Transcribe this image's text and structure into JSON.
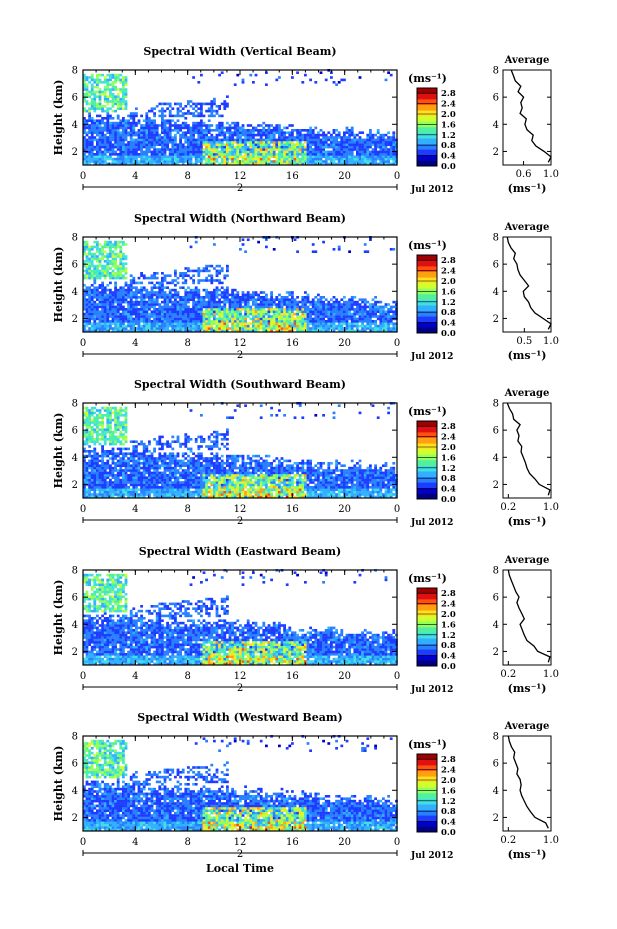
{
  "figure": {
    "date_label": "Jul 2012",
    "day_label": "2",
    "x_axis_label": "Local Time",
    "y_axis_label": "Height (km)",
    "colorbar_unit": "(ms⁻¹)",
    "average_title": "Average",
    "average_unit": "(ms⁻¹)",
    "colorbar_ticks": [
      "0.0",
      "0.4",
      "0.8",
      "1.2",
      "1.6",
      "2.0",
      "2.4",
      "2.8"
    ],
    "colorbar_range": [
      0.0,
      3.0
    ],
    "x_ticks": [
      "0",
      "4",
      "8",
      "12",
      "16",
      "20",
      "0"
    ],
    "y_ticks": [
      "2",
      "4",
      "6",
      "8"
    ],
    "colormap": [
      "#000080",
      "#0000c8",
      "#1e3cff",
      "#2880ff",
      "#30b0ff",
      "#40e0e0",
      "#50f0a0",
      "#90ff60",
      "#d0ff30",
      "#ffe020",
      "#ffa010",
      "#ff5010",
      "#e01010",
      "#a00000"
    ]
  },
  "chart_data": [
    {
      "type": "heatmap",
      "title": "Spectral Width (Vertical Beam)",
      "xlabel": "",
      "ylabel": "Height (km)",
      "xlim": [
        0,
        24
      ],
      "ylim": [
        1,
        8
      ],
      "average": {
        "xlim": [
          0.3,
          1.0
        ],
        "x_ticks": [
          "0.6",
          "1.0"
        ],
        "x_tick_values": [
          0.6,
          1.0
        ],
        "profile": [
          [
            0.96,
            1.2
          ],
          [
            1.0,
            1.6
          ],
          [
            0.9,
            2.0
          ],
          [
            0.78,
            2.4
          ],
          [
            0.72,
            2.8
          ],
          [
            0.74,
            3.2
          ],
          [
            0.65,
            3.6
          ],
          [
            0.62,
            4.0
          ],
          [
            0.64,
            4.4
          ],
          [
            0.55,
            4.8
          ],
          [
            0.58,
            5.2
          ],
          [
            0.56,
            5.6
          ],
          [
            0.6,
            6.0
          ],
          [
            0.52,
            6.4
          ],
          [
            0.56,
            6.8
          ],
          [
            0.48,
            7.2
          ],
          [
            0.45,
            7.6
          ],
          [
            0.42,
            8.0
          ]
        ]
      }
    },
    {
      "type": "heatmap",
      "title": "Spectral Width (Northward Beam)",
      "xlabel": "",
      "ylabel": "Height (km)",
      "xlim": [
        0,
        24
      ],
      "ylim": [
        1,
        8
      ],
      "average": {
        "xlim": [
          0.1,
          1.0
        ],
        "x_ticks": [
          "0.5",
          "1.0"
        ],
        "x_tick_values": [
          0.5,
          1.0
        ],
        "profile": [
          [
            0.95,
            1.2
          ],
          [
            1.0,
            1.6
          ],
          [
            0.85,
            2.0
          ],
          [
            0.7,
            2.4
          ],
          [
            0.62,
            2.8
          ],
          [
            0.58,
            3.2
          ],
          [
            0.5,
            3.6
          ],
          [
            0.48,
            4.0
          ],
          [
            0.58,
            4.4
          ],
          [
            0.5,
            4.8
          ],
          [
            0.42,
            5.2
          ],
          [
            0.38,
            5.6
          ],
          [
            0.36,
            6.0
          ],
          [
            0.3,
            6.4
          ],
          [
            0.33,
            6.8
          ],
          [
            0.25,
            7.2
          ],
          [
            0.2,
            7.6
          ],
          [
            0.18,
            8.0
          ]
        ]
      }
    },
    {
      "type": "heatmap",
      "title": "Spectral Width (Southward Beam)",
      "xlabel": "",
      "ylabel": "Height (km)",
      "xlim": [
        0,
        24
      ],
      "ylim": [
        1,
        8
      ],
      "average": {
        "xlim": [
          0.1,
          1.0
        ],
        "x_ticks": [
          "0.2",
          "1.0"
        ],
        "x_tick_values": [
          0.2,
          1.0
        ],
        "profile": [
          [
            0.95,
            1.2
          ],
          [
            0.98,
            1.6
          ],
          [
            0.78,
            2.0
          ],
          [
            0.7,
            2.4
          ],
          [
            0.6,
            2.8
          ],
          [
            0.55,
            3.2
          ],
          [
            0.52,
            3.6
          ],
          [
            0.48,
            4.0
          ],
          [
            0.44,
            4.4
          ],
          [
            0.45,
            4.8
          ],
          [
            0.38,
            5.2
          ],
          [
            0.4,
            5.6
          ],
          [
            0.36,
            6.0
          ],
          [
            0.42,
            6.4
          ],
          [
            0.3,
            6.8
          ],
          [
            0.28,
            7.2
          ],
          [
            0.22,
            7.6
          ],
          [
            0.18,
            8.0
          ]
        ]
      }
    },
    {
      "type": "heatmap",
      "title": "Spectral Width (Eastward Beam)",
      "xlabel": "",
      "ylabel": "Height (km)",
      "xlim": [
        0,
        24
      ],
      "ylim": [
        1,
        8
      ],
      "average": {
        "xlim": [
          0.1,
          1.0
        ],
        "x_ticks": [
          "0.2",
          "1.0"
        ],
        "x_tick_values": [
          0.2,
          1.0
        ],
        "profile": [
          [
            0.95,
            1.2
          ],
          [
            0.98,
            1.6
          ],
          [
            0.75,
            2.0
          ],
          [
            0.68,
            2.4
          ],
          [
            0.55,
            2.8
          ],
          [
            0.5,
            3.2
          ],
          [
            0.46,
            3.6
          ],
          [
            0.42,
            4.0
          ],
          [
            0.5,
            4.4
          ],
          [
            0.45,
            4.8
          ],
          [
            0.4,
            5.2
          ],
          [
            0.36,
            5.6
          ],
          [
            0.4,
            6.0
          ],
          [
            0.34,
            6.4
          ],
          [
            0.3,
            6.8
          ],
          [
            0.26,
            7.2
          ],
          [
            0.22,
            7.6
          ],
          [
            0.2,
            8.0
          ]
        ]
      }
    },
    {
      "type": "heatmap",
      "title": "Spectral Width (Westward Beam)",
      "xlabel": "Local Time",
      "ylabel": "Height (km)",
      "xlim": [
        0,
        24
      ],
      "ylim": [
        1,
        8
      ],
      "average": {
        "xlim": [
          0.1,
          1.0
        ],
        "x_ticks": [
          "0.2",
          "1.0"
        ],
        "x_tick_values": [
          0.2,
          1.0
        ],
        "profile": [
          [
            0.95,
            1.2
          ],
          [
            0.9,
            1.6
          ],
          [
            0.7,
            2.0
          ],
          [
            0.62,
            2.4
          ],
          [
            0.55,
            2.8
          ],
          [
            0.5,
            3.2
          ],
          [
            0.45,
            3.6
          ],
          [
            0.42,
            4.0
          ],
          [
            0.44,
            4.4
          ],
          [
            0.42,
            4.8
          ],
          [
            0.36,
            5.2
          ],
          [
            0.38,
            5.6
          ],
          [
            0.34,
            6.0
          ],
          [
            0.3,
            6.4
          ],
          [
            0.32,
            6.8
          ],
          [
            0.26,
            7.2
          ],
          [
            0.22,
            7.6
          ],
          [
            0.2,
            8.0
          ]
        ]
      }
    }
  ]
}
